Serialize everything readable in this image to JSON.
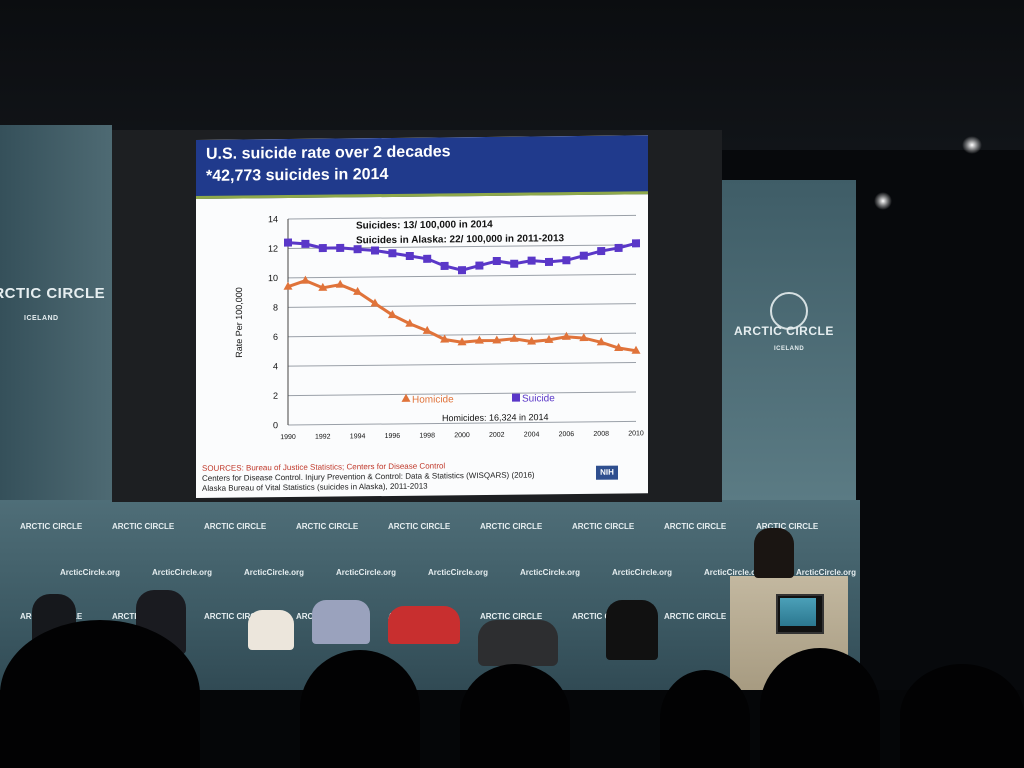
{
  "slide": {
    "title_line1": "U.S. suicide rate over 2 decades",
    "title_line2": "*42,773 suicides in 2014",
    "sources": [
      "SOURCES: Bureau of Justice Statistics; Centers for Disease Control",
      "Centers for Disease Control. Injury Prevention & Control: Data & Statistics (WISQARS) (2016)",
      "Alaska Bureau of Vital Statistics (suicides in Alaska), 2011-2013"
    ],
    "nih_label": "NIH"
  },
  "chart_data": {
    "type": "line",
    "title": "",
    "xlabel": "",
    "ylabel": "Rate Per 100,000",
    "x": [
      1990,
      1991,
      1992,
      1993,
      1994,
      1995,
      1996,
      1997,
      1998,
      1999,
      2000,
      2001,
      2002,
      2003,
      2004,
      2005,
      2006,
      2007,
      2008,
      2009,
      2010
    ],
    "xticks": [
      1990,
      1992,
      1994,
      1996,
      1998,
      2000,
      2002,
      2004,
      2006,
      2008,
      2010
    ],
    "ylim": [
      0,
      14
    ],
    "yticks": [
      0,
      2,
      4,
      6,
      8,
      10,
      12,
      14
    ],
    "grid": true,
    "legend_position": "bottom-center",
    "series": [
      {
        "name": "Homicide",
        "color": "#e0733a",
        "marker": "triangle",
        "values": [
          9.4,
          9.8,
          9.3,
          9.5,
          9.0,
          8.2,
          7.4,
          6.8,
          6.3,
          5.7,
          5.5,
          5.6,
          5.6,
          5.7,
          5.5,
          5.6,
          5.8,
          5.7,
          5.4,
          5.0,
          4.8
        ]
      },
      {
        "name": "Suicide",
        "color": "#5a37c8",
        "marker": "square",
        "values": [
          12.4,
          12.3,
          12.0,
          12.0,
          11.9,
          11.8,
          11.6,
          11.4,
          11.2,
          10.7,
          10.4,
          10.7,
          11.0,
          10.8,
          11.0,
          10.9,
          11.0,
          11.3,
          11.6,
          11.8,
          12.1
        ]
      }
    ],
    "annotations": [
      "Suicides: 13/ 100,000 in 2014",
      "Suicides in Alaska: 22/ 100,000 in 2011-2013",
      "Homicides: 16,324 in 2014"
    ]
  },
  "venue": {
    "logo_left": "ARCTIC CIRCLE",
    "logo_left_sub": "ICELAND",
    "logo_right": "ARCTIC CIRCLE",
    "logo_right_sub": "ICELAND",
    "backdrop_brand": "ARCTIC CIRCLE",
    "backdrop_url": "ArcticCircle.org"
  },
  "colors": {
    "slide_header": "#203a8c",
    "backdrop": "#4f6e78",
    "podium": "#c3b8a0"
  }
}
